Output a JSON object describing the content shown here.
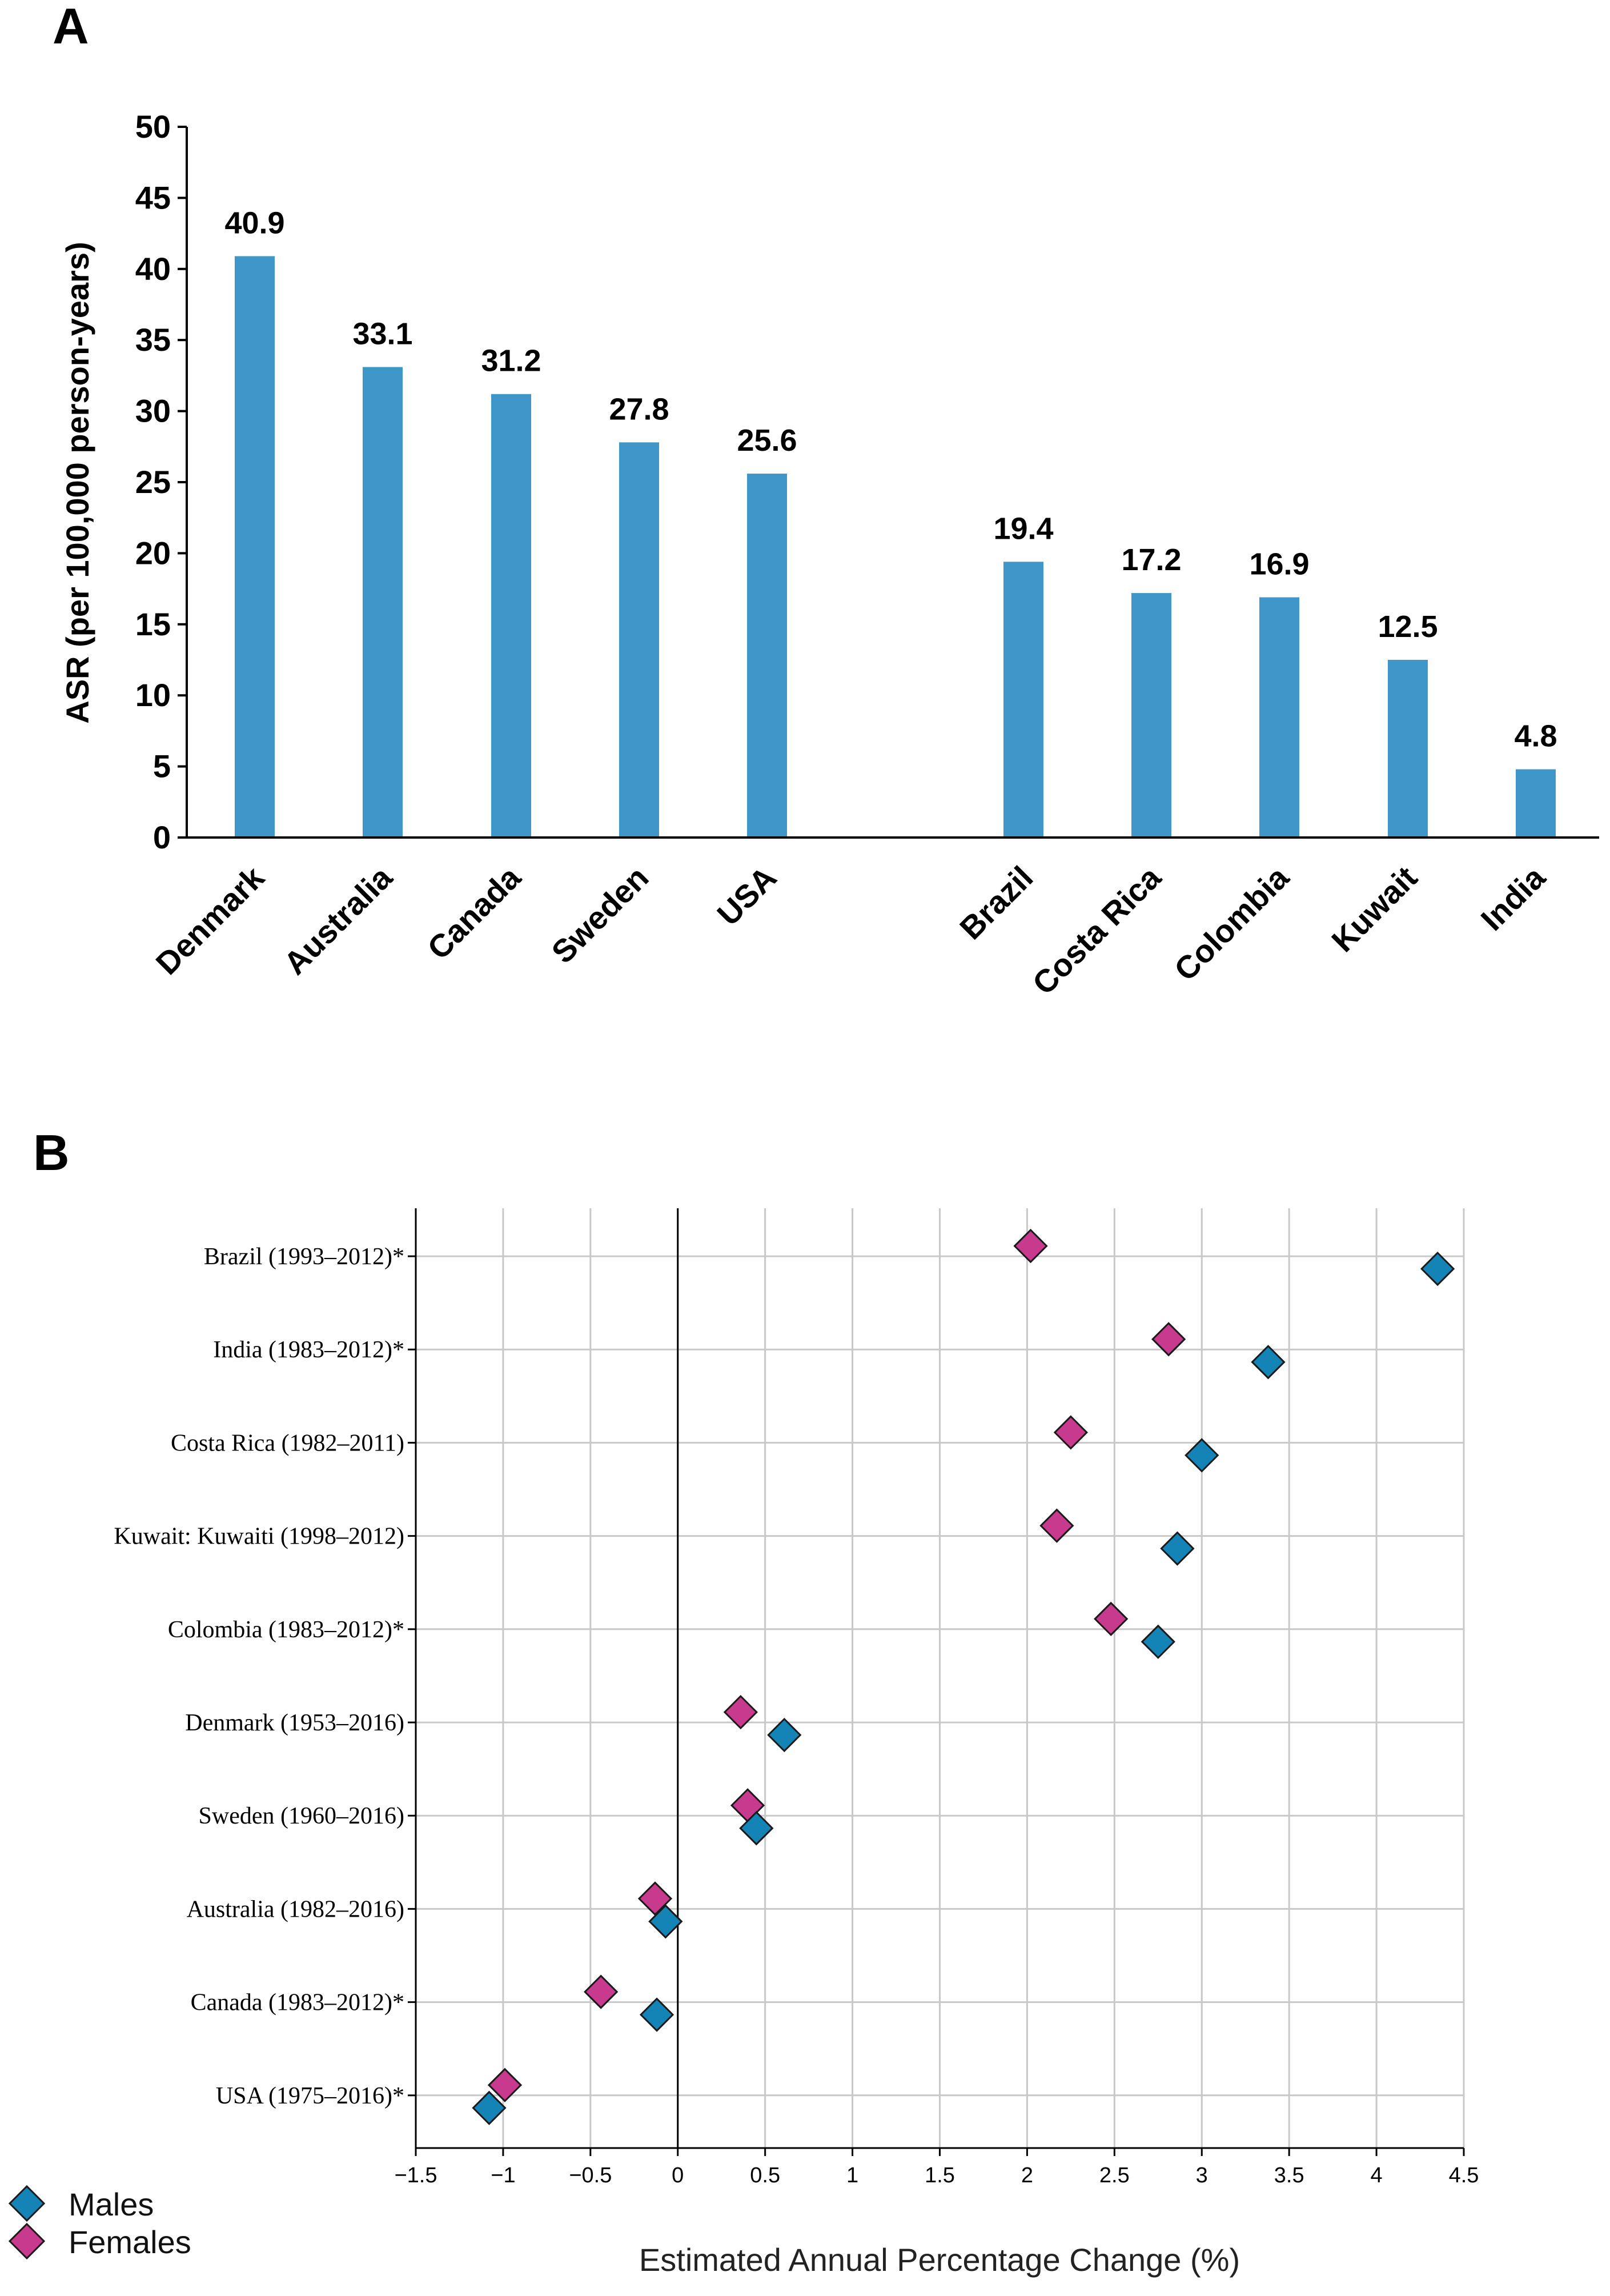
{
  "panels": {
    "a": "A",
    "b": "B"
  },
  "colors": {
    "bar": "#3f97c9",
    "males": "#1483b5",
    "females": "#c83a8e",
    "grid": "#c8c8c8"
  },
  "chart_data": [
    {
      "type": "bar",
      "title": "",
      "xlabel": "",
      "ylabel": "ASR (per 100,000 person-years)",
      "ylim": [
        0,
        50
      ],
      "yticks": [
        0,
        5,
        10,
        15,
        20,
        25,
        30,
        35,
        40,
        45,
        50
      ],
      "categories": [
        "Denmark",
        "Australia",
        "Canada",
        "Sweden",
        "USA",
        "Brazil",
        "Costa Rica",
        "Colombia",
        "Kuwait",
        "India"
      ],
      "values": [
        40.9,
        33.1,
        31.2,
        27.8,
        25.6,
        19.4,
        17.2,
        16.9,
        12.5,
        4.8
      ],
      "value_labels": [
        "40.9",
        "33.1",
        "31.2",
        "27.8",
        "25.6",
        "19.4",
        "17.2",
        "16.9",
        "12.5",
        "4.8"
      ]
    },
    {
      "type": "scatter",
      "title": "",
      "xlabel": "Estimated Annual Percentage Change (%)",
      "ylabel": "",
      "xlim": [
        -1.5,
        4.5
      ],
      "xticks": [
        -1.5,
        -1,
        -0.5,
        0,
        0.5,
        1,
        1.5,
        2,
        2.5,
        3,
        3.5,
        4,
        4.5
      ],
      "xtick_labels": [
        "−1.5",
        "−1",
        "−0.5",
        "0",
        "0.5",
        "1",
        "1.5",
        "2",
        "2.5",
        "3",
        "3.5",
        "4",
        "4.5"
      ],
      "categories": [
        "Brazil (1993–2012)*",
        "India (1983–2012)*",
        "Costa Rica (1982–2011)",
        "Kuwait: Kuwaiti (1998–2012)",
        "Colombia (1983–2012)*",
        "Denmark (1953–2016)",
        "Sweden (1960–2016)",
        "Australia (1982–2016)",
        "Canada (1983–2012)*",
        "USA (1975–2016)*"
      ],
      "series": [
        {
          "name": "Males",
          "values": [
            4.35,
            3.38,
            3.0,
            2.86,
            2.75,
            0.61,
            0.45,
            -0.07,
            -0.12,
            -1.08
          ]
        },
        {
          "name": "Females",
          "values": [
            2.02,
            2.81,
            2.25,
            2.17,
            2.48,
            0.36,
            0.4,
            -0.13,
            -0.44,
            -0.99
          ]
        }
      ],
      "legend": "bottom-left"
    }
  ]
}
